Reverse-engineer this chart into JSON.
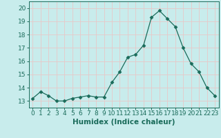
{
  "x": [
    0,
    1,
    2,
    3,
    4,
    5,
    6,
    7,
    8,
    9,
    10,
    11,
    12,
    13,
    14,
    15,
    16,
    17,
    18,
    19,
    20,
    21,
    22,
    23
  ],
  "y": [
    13.2,
    13.7,
    13.4,
    13.0,
    13.0,
    13.2,
    13.3,
    13.4,
    13.3,
    13.3,
    14.4,
    15.2,
    16.3,
    16.5,
    17.2,
    19.3,
    19.8,
    19.2,
    18.6,
    17.0,
    15.8,
    15.2,
    14.0,
    13.4
  ],
  "xlabel": "Humidex (Indice chaleur)",
  "xlim": [
    -0.5,
    23.5
  ],
  "ylim": [
    12.5,
    20.5
  ],
  "yticks": [
    13,
    14,
    15,
    16,
    17,
    18,
    19,
    20
  ],
  "xticks": [
    0,
    1,
    2,
    3,
    4,
    5,
    6,
    7,
    8,
    9,
    10,
    11,
    12,
    13,
    14,
    15,
    16,
    17,
    18,
    19,
    20,
    21,
    22,
    23
  ],
  "line_color": "#1a6b5a",
  "marker": "D",
  "marker_size": 2.5,
  "bg_color": "#c8ecec",
  "grid_color": "#e8c8c8",
  "axis_color": "#1a6b5a",
  "label_color": "#1a6b5a",
  "xlabel_fontsize": 7.5,
  "tick_fontsize": 6.5
}
